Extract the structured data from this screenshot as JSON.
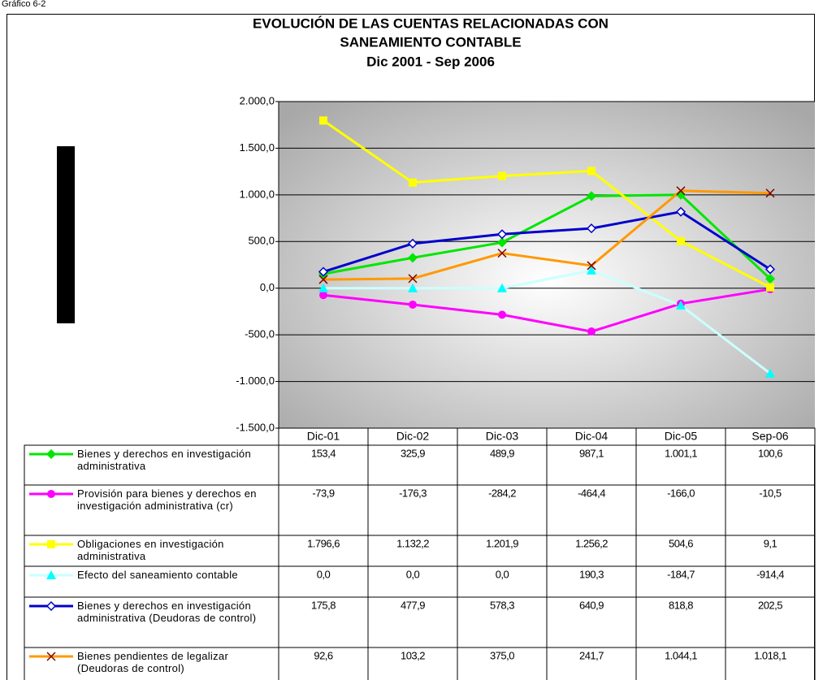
{
  "caption": "Gráfico 6-2",
  "chart_data": {
    "type": "line",
    "title": [
      "EVOLUCIÓN DE LAS CUENTAS RELACIONADAS CON",
      "SANEAMIENTO CONTABLE",
      "Dic 2001  -  Sep 2006"
    ],
    "categories": [
      "Dic-01",
      "Dic-02",
      "Dic-03",
      "Dic-04",
      "Dic-05",
      "Sep-06"
    ],
    "ylim": [
      -1500,
      2000
    ],
    "yticks": [
      {
        "value": -1500,
        "label": "-1.500,0"
      },
      {
        "value": -1000,
        "label": "-1.000,0"
      },
      {
        "value": -500,
        "label": "-500,0"
      },
      {
        "value": 0,
        "label": "0,0"
      },
      {
        "value": 500,
        "label": "500,0"
      },
      {
        "value": 1000,
        "label": "1.000,0"
      },
      {
        "value": 1500,
        "label": "1.500,0"
      },
      {
        "value": 2000,
        "label": "2.000,0"
      }
    ],
    "grid": true,
    "series": [
      {
        "name": "Bienes y derechos en investigación administrativa",
        "color": "#00e600",
        "marker": "diamond",
        "values": [
          153.4,
          325.9,
          489.9,
          987.1,
          1001.1,
          100.6
        ],
        "value_labels": [
          "153,4",
          "325,9",
          "489,9",
          "987,1",
          "1.001,1",
          "100,6"
        ]
      },
      {
        "name": "Provisión para bienes y derechos en investigación administrativa (cr)",
        "color": "#ff00ff",
        "marker": "circle",
        "values": [
          -73.9,
          -176.3,
          -284.2,
          -464.4,
          -166.0,
          -10.5
        ],
        "value_labels": [
          "-73,9",
          "-176,3",
          "-284,2",
          "-464,4",
          "-166,0",
          "-10,5"
        ]
      },
      {
        "name": "Obligaciones en investigación administrativa",
        "color": "#ffff00",
        "marker": "square",
        "values": [
          1796.6,
          1132.2,
          1201.9,
          1256.2,
          504.6,
          9.1
        ],
        "value_labels": [
          "1.796,6",
          "1.132,2",
          "1.201,9",
          "1.256,2",
          "504,6",
          "9,1"
        ]
      },
      {
        "name": "Efecto del saneamiento contable",
        "color": "#ccffff",
        "marker": "triangle",
        "marker_color": "#00ffff",
        "values": [
          0.0,
          0.0,
          0.0,
          190.3,
          -184.7,
          -914.4
        ],
        "value_labels": [
          "0,0",
          "0,0",
          "0,0",
          "190,3",
          "-184,7",
          "-914,4"
        ]
      },
      {
        "name": "Bienes y derechos en investigación administrativa (Deudoras de control)",
        "color": "#0000cc",
        "marker": "diamond-open",
        "values": [
          175.8,
          477.9,
          578.3,
          640.9,
          818.8,
          202.5
        ],
        "value_labels": [
          "175,8",
          "477,9",
          "578,3",
          "640,9",
          "818,8",
          "202,5"
        ]
      },
      {
        "name": "Bienes pendientes de legalizar (Deudoras de control)",
        "color": "#ff9900",
        "marker": "x",
        "marker_color": "#800000",
        "values": [
          92.6,
          103.2,
          375.0,
          241.7,
          1044.1,
          1018.1
        ],
        "value_labels": [
          "92,6",
          "103,2",
          "375,0",
          "241,7",
          "1.044,1",
          "1.018,1"
        ]
      }
    ]
  }
}
